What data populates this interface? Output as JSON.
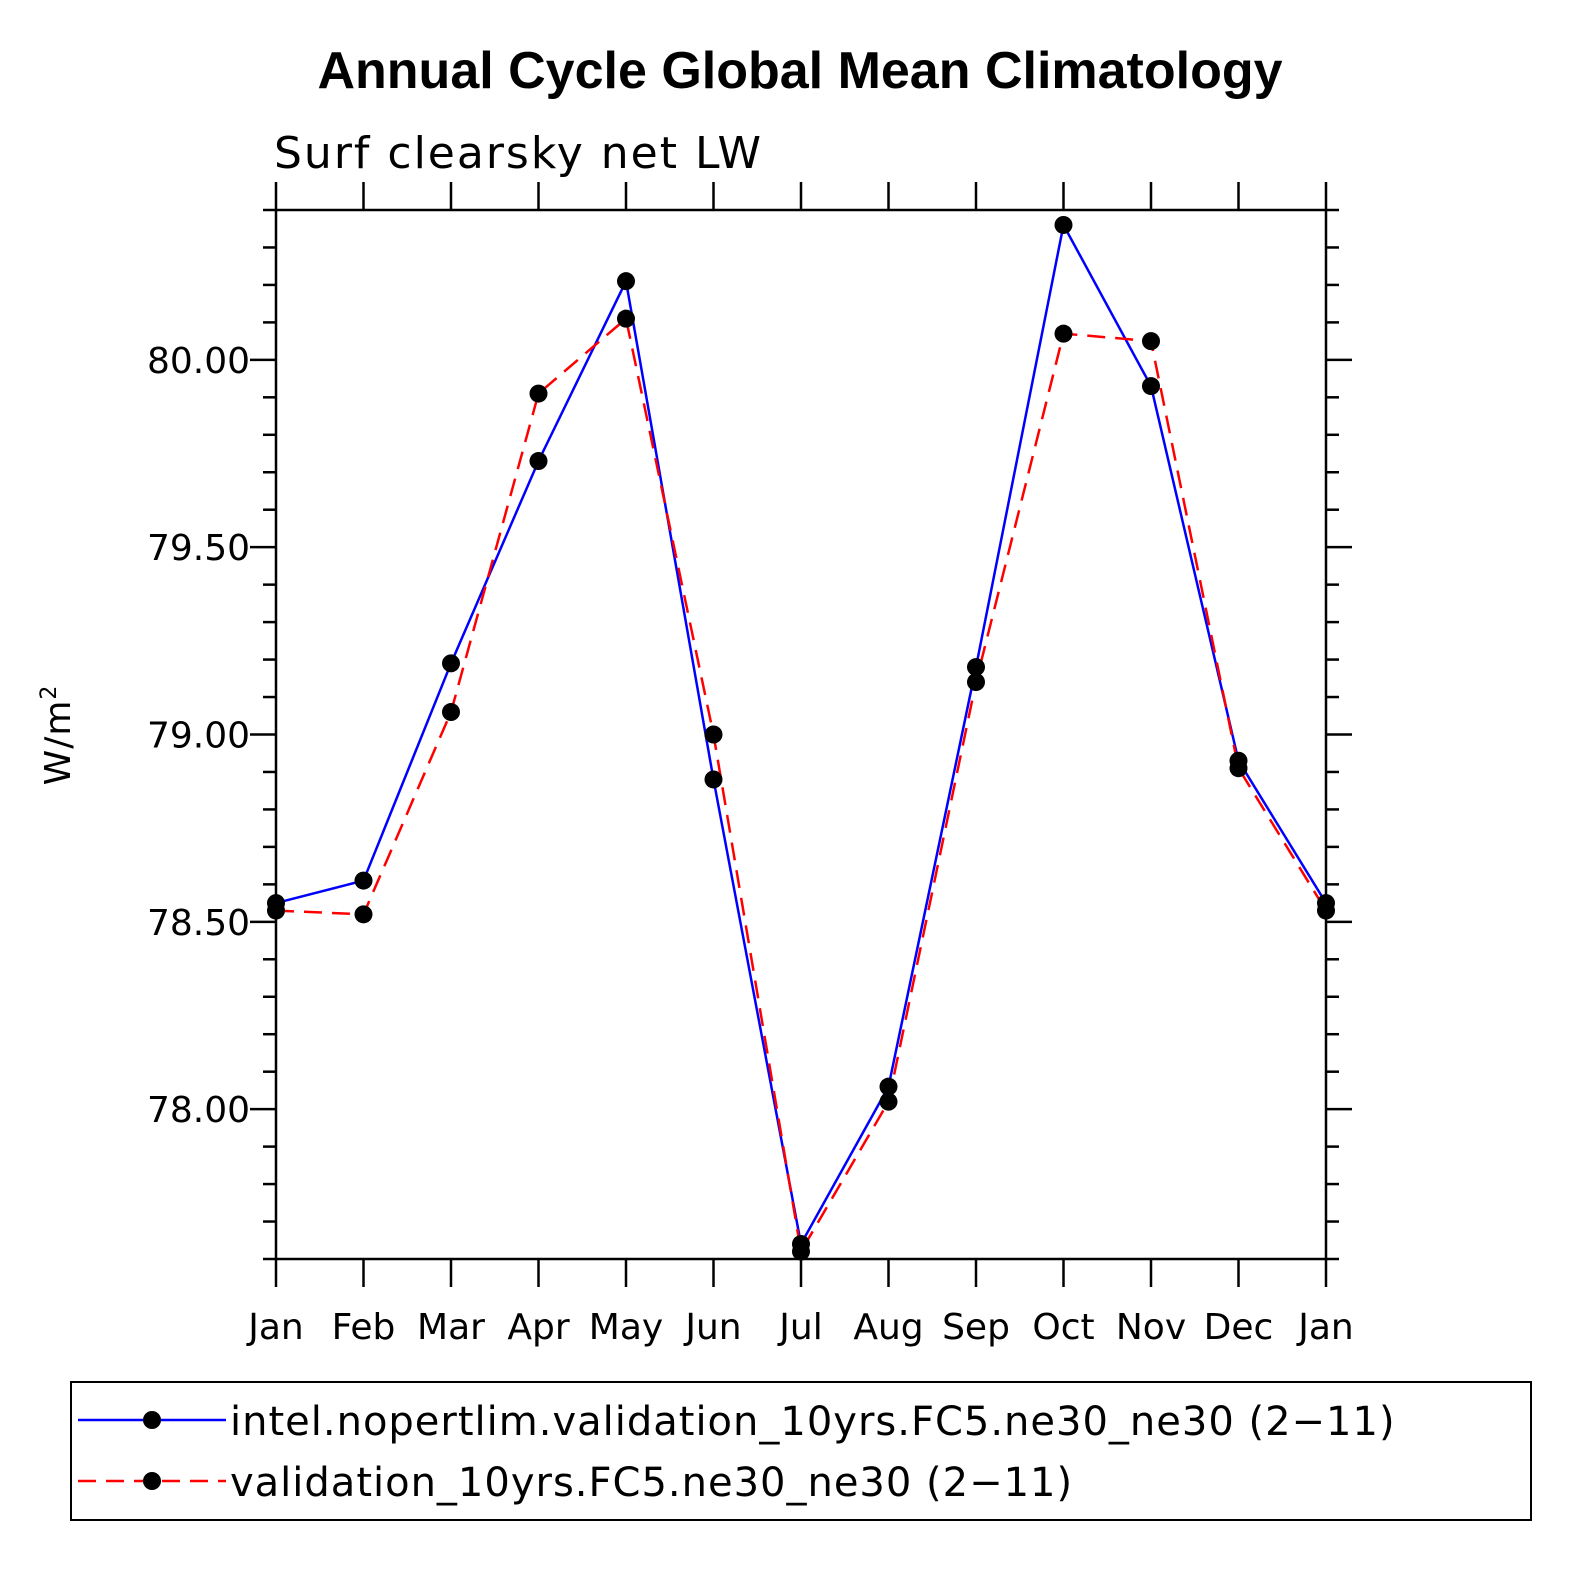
{
  "chart_data": {
    "type": "line",
    "title": "Annual Cycle Global Mean Climatology",
    "subtitle": "Surf clearsky net LW",
    "ylabel": "W/m",
    "ylabel_sup": "2",
    "categories": [
      "Jan",
      "Feb",
      "Mar",
      "Apr",
      "May",
      "Jun",
      "Jul",
      "Aug",
      "Sep",
      "Oct",
      "Nov",
      "Dec",
      "Jan"
    ],
    "ylim": [
      77.6,
      80.4
    ],
    "yticks": [
      78.0,
      78.5,
      79.0,
      79.5,
      80.0
    ],
    "ytick_labels": [
      "78.00",
      "78.50",
      "79.00",
      "79.50",
      "80.00"
    ],
    "series": [
      {
        "name": "intel.nopertlim.validation_10yrs.FC5.ne30_ne30 (2−11)",
        "color": "#0000ff",
        "dash": "solid",
        "values": [
          78.55,
          78.61,
          79.19,
          79.73,
          80.21,
          78.88,
          77.64,
          78.06,
          79.18,
          80.36,
          79.93,
          78.93,
          78.55
        ]
      },
      {
        "name": "validation_10yrs.FC5.ne30_ne30 (2−11)",
        "color": "#ff0000",
        "dash": "dashed",
        "values": [
          78.53,
          78.52,
          79.06,
          79.91,
          80.11,
          79.0,
          77.62,
          78.02,
          79.14,
          80.07,
          80.05,
          78.91,
          78.53
        ]
      }
    ],
    "legend_position": "bottom"
  }
}
